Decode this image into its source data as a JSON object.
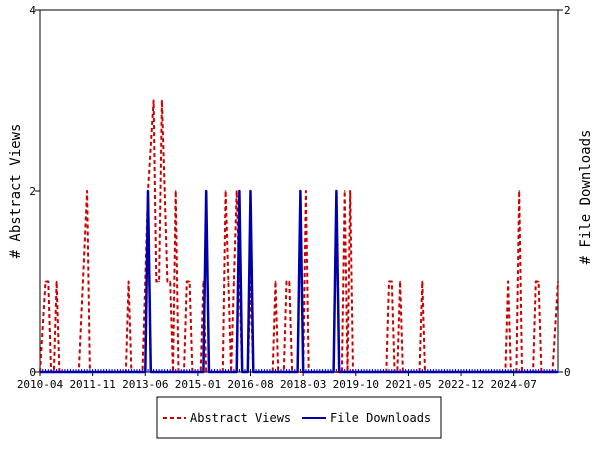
{
  "chart_data": {
    "type": "line",
    "xlabel": "",
    "ylabel_left": "# Abstract Views",
    "ylabel_right": "# File Downloads",
    "ylim_left": [
      0,
      4
    ],
    "ylim_right": [
      0,
      2
    ],
    "xlim": [
      "2010-04",
      "2025-11"
    ],
    "x_tick_labels": [
      "2010-04",
      "2011-11",
      "2013-06",
      "2015-01",
      "2016-08",
      "2018-03",
      "2019-10",
      "2021-05",
      "2022-12",
      "2024-07"
    ],
    "y_left_ticks": [
      "0",
      "2",
      "4"
    ],
    "y_right_ticks": [
      "0",
      "2"
    ],
    "grid": false,
    "legend_position": "bottom",
    "series": [
      {
        "name": "Abstract Views",
        "axis": "left",
        "color": "#cc0000",
        "dash": true,
        "points": [
          [
            "2010-04",
            0
          ],
          [
            "2010-06",
            1
          ],
          [
            "2010-07",
            1
          ],
          [
            "2010-08",
            0
          ],
          [
            "2010-09",
            0
          ],
          [
            "2010-10",
            1
          ],
          [
            "2010-11",
            0
          ],
          [
            "2011-06",
            0
          ],
          [
            "2011-09",
            2
          ],
          [
            "2011-10",
            0
          ],
          [
            "2012-11",
            0
          ],
          [
            "2012-12",
            1
          ],
          [
            "2013-01",
            0
          ],
          [
            "2013-05",
            0
          ],
          [
            "2013-07",
            2
          ],
          [
            "2013-09",
            3
          ],
          [
            "2013-10",
            1
          ],
          [
            "2013-11",
            1
          ],
          [
            "2013-12",
            3
          ],
          [
            "2014-01",
            2
          ],
          [
            "2014-02",
            1
          ],
          [
            "2014-03",
            1
          ],
          [
            "2014-04",
            0
          ],
          [
            "2014-05",
            2
          ],
          [
            "2014-06",
            0
          ],
          [
            "2014-08",
            0
          ],
          [
            "2014-09",
            1
          ],
          [
            "2014-10",
            1
          ],
          [
            "2014-11",
            0
          ],
          [
            "2015-02",
            0
          ],
          [
            "2015-03",
            1
          ],
          [
            "2015-04",
            0
          ],
          [
            "2015-10",
            0
          ],
          [
            "2015-11",
            2
          ],
          [
            "2015-12",
            1
          ],
          [
            "2016-01",
            0
          ],
          [
            "2016-02",
            1
          ],
          [
            "2016-03",
            2
          ],
          [
            "2016-04",
            1
          ],
          [
            "2016-05",
            0
          ],
          [
            "2016-07",
            0
          ],
          [
            "2016-08",
            1
          ],
          [
            "2016-09",
            0
          ],
          [
            "2017-04",
            0
          ],
          [
            "2017-05",
            1
          ],
          [
            "2017-06",
            0
          ],
          [
            "2017-08",
            0
          ],
          [
            "2017-09",
            1
          ],
          [
            "2017-10",
            1
          ],
          [
            "2017-11",
            0
          ],
          [
            "2018-03",
            0
          ],
          [
            "2018-04",
            2
          ],
          [
            "2018-05",
            0
          ],
          [
            "2019-05",
            0
          ],
          [
            "2019-06",
            2
          ],
          [
            "2019-07",
            0
          ],
          [
            "2019-08",
            2
          ],
          [
            "2019-09",
            0
          ],
          [
            "2020-09",
            0
          ],
          [
            "2020-10",
            1
          ],
          [
            "2020-11",
            1
          ],
          [
            "2020-12",
            0
          ],
          [
            "2021-01",
            0
          ],
          [
            "2021-02",
            1
          ],
          [
            "2021-03",
            0
          ],
          [
            "2021-09",
            0
          ],
          [
            "2021-10",
            1
          ],
          [
            "2021-11",
            0
          ],
          [
            "2024-04",
            0
          ],
          [
            "2024-05",
            1
          ],
          [
            "2024-06",
            0
          ],
          [
            "2024-08",
            0
          ],
          [
            "2024-09",
            2
          ],
          [
            "2024-10",
            0
          ],
          [
            "2025-02",
            0
          ],
          [
            "2025-03",
            1
          ],
          [
            "2025-04",
            1
          ],
          [
            "2025-05",
            0
          ],
          [
            "2025-09",
            0
          ],
          [
            "2025-11",
            1
          ]
        ]
      },
      {
        "name": "File Downloads",
        "axis": "right",
        "color": "#0000aa",
        "dash": false,
        "points": [
          [
            "2010-04",
            0
          ],
          [
            "2013-06",
            0
          ],
          [
            "2013-07",
            1
          ],
          [
            "2013-08",
            0
          ],
          [
            "2015-03",
            0
          ],
          [
            "2015-04",
            1
          ],
          [
            "2015-05",
            0
          ],
          [
            "2016-03",
            0
          ],
          [
            "2016-04",
            1
          ],
          [
            "2016-05",
            0
          ],
          [
            "2016-07",
            0
          ],
          [
            "2016-08",
            1
          ],
          [
            "2016-09",
            0
          ],
          [
            "2018-01",
            0
          ],
          [
            "2018-02",
            1
          ],
          [
            "2018-03",
            0
          ],
          [
            "2019-02",
            0
          ],
          [
            "2019-03",
            1
          ],
          [
            "2019-04",
            0
          ],
          [
            "2025-11",
            0
          ]
        ]
      }
    ]
  }
}
